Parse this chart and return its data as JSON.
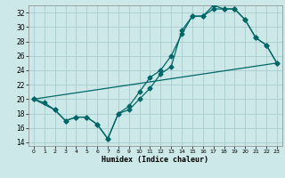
{
  "xlabel": "Humidex (Indice chaleur)",
  "bg_color": "#cce8e8",
  "grid_color": "#aacccc",
  "line_color": "#006666",
  "xlim": [
    -0.5,
    23.5
  ],
  "ylim": [
    13.5,
    33.0
  ],
  "yticks": [
    14,
    16,
    18,
    20,
    22,
    24,
    26,
    28,
    30,
    32
  ],
  "xticks": [
    0,
    1,
    2,
    3,
    4,
    5,
    6,
    7,
    8,
    9,
    10,
    11,
    12,
    13,
    14,
    15,
    16,
    17,
    18,
    19,
    20,
    21,
    22,
    23
  ],
  "line1_x": [
    0,
    1,
    2,
    3,
    4,
    5,
    6,
    7,
    8,
    9,
    10,
    11,
    12,
    13,
    14,
    15,
    16,
    17,
    18,
    19,
    20,
    21,
    22,
    23
  ],
  "line1_y": [
    20.0,
    19.5,
    18.5,
    17.0,
    17.5,
    17.5,
    16.5,
    14.5,
    18.0,
    19.0,
    21.0,
    23.0,
    24.0,
    26.0,
    29.0,
    31.5,
    31.5,
    33.0,
    32.5,
    32.5,
    31.0,
    28.5,
    27.5,
    25.0
  ],
  "line2_x": [
    0,
    2,
    3,
    4,
    5,
    6,
    7,
    8,
    9,
    10,
    11,
    12,
    13,
    14,
    15,
    16,
    17,
    18,
    19,
    20,
    21,
    22,
    23
  ],
  "line2_y": [
    20.0,
    18.5,
    17.0,
    17.5,
    17.5,
    16.5,
    14.5,
    18.0,
    18.5,
    20.0,
    21.5,
    23.5,
    24.5,
    29.5,
    31.5,
    31.5,
    32.5,
    32.5,
    32.5,
    31.0,
    28.5,
    27.5,
    25.0
  ],
  "line3_x": [
    0,
    23
  ],
  "line3_y": [
    20.0,
    25.0
  ]
}
